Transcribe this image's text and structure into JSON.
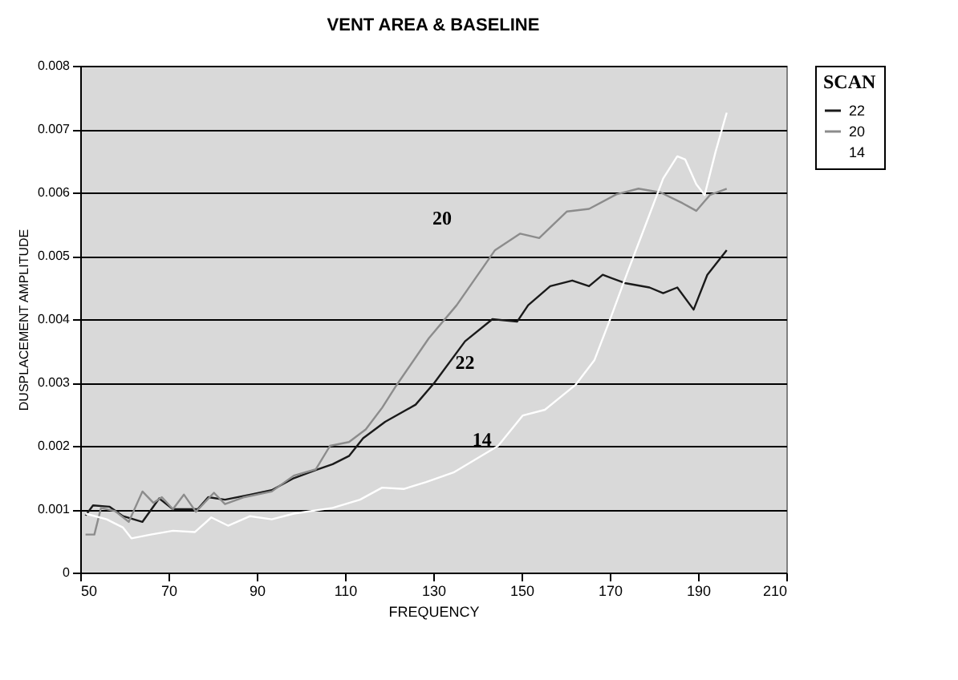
{
  "chart_data": {
    "type": "line",
    "title": "VENT AREA & BASELINE",
    "xlabel": "FREQUENCY",
    "ylabel": "DUSPLACEMENT AMPLITUDE",
    "legend_title": "SCAN",
    "legend": "right",
    "grid": "y",
    "xlim": [
      50,
      210
    ],
    "xticks": [
      50,
      70,
      90,
      110,
      130,
      150,
      170,
      190,
      210
    ],
    "ylim": [
      0,
      0.008
    ],
    "yticks": [
      0,
      0.001,
      0.002,
      0.003,
      0.004,
      0.005,
      0.006,
      0.007,
      0.008
    ],
    "series": [
      {
        "name": "22",
        "color": "#1a1a1a",
        "x": [
          51.2,
          52.9,
          56.6,
          59.7,
          64.1,
          67.9,
          71,
          76.6,
          79,
          82.8,
          88.5,
          93.4,
          98.4,
          103.4,
          107.2,
          110.9,
          114.1,
          119.1,
          126,
          130.3,
          137.2,
          143.4,
          149,
          151.5,
          156.5,
          161.5,
          165.3,
          168.4,
          173.4,
          179,
          182.1,
          185.3,
          189,
          192.1,
          196.5
        ],
        "values": [
          0.0009,
          0.00106,
          0.00104,
          0.00089,
          0.0008,
          0.00117,
          0.001,
          0.001,
          0.00119,
          0.00115,
          0.00123,
          0.0013,
          0.00149,
          0.00162,
          0.00171,
          0.00184,
          0.00212,
          0.00238,
          0.00265,
          0.003,
          0.00365,
          0.004,
          0.00396,
          0.00422,
          0.00452,
          0.00461,
          0.00452,
          0.0047,
          0.00457,
          0.0045,
          0.00441,
          0.0045,
          0.00415,
          0.0047,
          0.00509
        ]
      },
      {
        "name": "20",
        "color": "#8c8c8c",
        "x": [
          51.2,
          53.2,
          54.7,
          57.9,
          61,
          64.1,
          66.6,
          68.5,
          71,
          73.5,
          76.2,
          80.3,
          82.8,
          87.2,
          93.4,
          98.4,
          103.4,
          106.6,
          110.9,
          114.7,
          118.4,
          121.6,
          129,
          135.3,
          144,
          149.7,
          154,
          160.3,
          165.3,
          171.5,
          176.5,
          181.5,
          186.5,
          189.6,
          192.7,
          196.5
        ],
        "values": [
          0.0006,
          0.0006,
          0.00102,
          0.00097,
          0.0008,
          0.00128,
          0.0011,
          0.00119,
          0.001,
          0.00123,
          0.00096,
          0.00126,
          0.00108,
          0.00119,
          0.00128,
          0.00153,
          0.00163,
          0.002,
          0.00206,
          0.00226,
          0.0026,
          0.00295,
          0.0037,
          0.00422,
          0.00509,
          0.00535,
          0.00528,
          0.0057,
          0.00574,
          0.00597,
          0.00606,
          0.006,
          0.00583,
          0.00571,
          0.00596,
          0.00606
        ]
      },
      {
        "name": "14",
        "color": "#ffffff",
        "x": [
          51.2,
          56,
          59.7,
          61.6,
          66,
          71,
          76,
          79.7,
          83.5,
          88.5,
          93.4,
          98.4,
          107.2,
          113.4,
          118.4,
          123.4,
          128.4,
          134.6,
          144.7,
          150.3,
          155.3,
          162.2,
          166.5,
          170.3,
          174,
          177.8,
          182.1,
          185.3,
          187.1,
          189.6,
          191.5,
          194,
          196.5
        ],
        "values": [
          0.00093,
          0.00084,
          0.00071,
          0.00054,
          0.0006,
          0.00066,
          0.00064,
          0.00087,
          0.00074,
          0.00089,
          0.00084,
          0.00093,
          0.00102,
          0.00115,
          0.00134,
          0.00132,
          0.00143,
          0.00158,
          0.002,
          0.00248,
          0.00257,
          0.00296,
          0.00335,
          0.00404,
          0.00474,
          0.00543,
          0.00622,
          0.00657,
          0.00652,
          0.00613,
          0.00596,
          0.00665,
          0.00726
        ]
      }
    ],
    "annotations": [
      "20",
      "22",
      "14"
    ]
  }
}
